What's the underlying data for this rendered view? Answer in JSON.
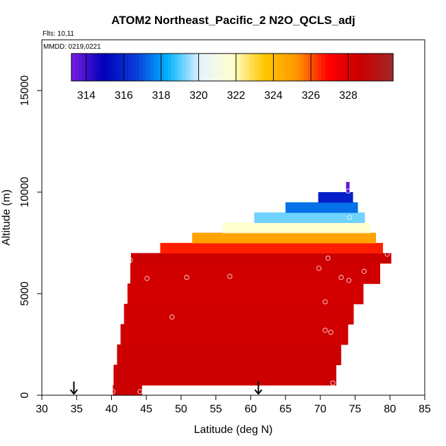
{
  "chart_data": {
    "type": "heatmap",
    "title": "ATOM2 Northeast_Pacific_2 N2O_QCLS_adj",
    "flights_label": "Flts: 10,11",
    "mmdd_label": "MMDD: 0219,0221",
    "xlabel": "Latitude (deg N)",
    "ylabel": "Altitude (m)",
    "xlim": [
      30,
      85
    ],
    "ylim": [
      0,
      17500
    ],
    "x_ticks": [
      30,
      35,
      40,
      45,
      50,
      55,
      60,
      65,
      70,
      75,
      80,
      85
    ],
    "y_ticks": [
      0,
      5000,
      10000,
      15000
    ],
    "grid": false,
    "colorbar": {
      "range": [
        313.2,
        330.4
      ],
      "ticks": [
        314,
        316,
        318,
        320,
        322,
        324,
        326,
        328
      ],
      "stops": [
        "#7a1fe0",
        "#0000b8",
        "#0a3cd8",
        "#00b4ff",
        "#e6f2ff",
        "#ffffd0",
        "#ffc800",
        "#ff9600",
        "#ff0000",
        "#c80000",
        "#a02828"
      ]
    },
    "layers": [
      {
        "z0": 0,
        "z1": 500,
        "lat0": 40.2,
        "lat1": 44.4,
        "value": 328.6
      },
      {
        "z0": 500,
        "z1": 1500,
        "lat0": 40.3,
        "lat1": 72.3,
        "value": 328.6
      },
      {
        "z0": 1500,
        "z1": 2500,
        "lat0": 40.8,
        "lat1": 73.0,
        "value": 328.6
      },
      {
        "z0": 2500,
        "z1": 3500,
        "lat0": 41.3,
        "lat1": 74.0,
        "value": 328.4
      },
      {
        "z0": 3500,
        "z1": 4500,
        "lat0": 41.8,
        "lat1": 74.8,
        "value": 328.4
      },
      {
        "z0": 4500,
        "z1": 5500,
        "lat0": 42.3,
        "lat1": 76.2,
        "value": 328.3
      },
      {
        "z0": 5500,
        "z1": 6500,
        "lat0": 42.7,
        "lat1": 78.6,
        "value": 328.4
      },
      {
        "z0": 6500,
        "z1": 7000,
        "lat0": 42.8,
        "lat1": 80.2,
        "value": 328.6
      },
      {
        "z0": 7000,
        "z1": 7500,
        "lat0": 47.0,
        "lat1": 79.0,
        "value": 326.6
      },
      {
        "z0": 7500,
        "z1": 8000,
        "lat0": 51.6,
        "lat1": 78.0,
        "value": 324.8
      },
      {
        "z0": 8000,
        "z1": 8500,
        "lat0": 56.0,
        "lat1": 77.2,
        "value": 321.8
      },
      {
        "z0": 8500,
        "z1": 9000,
        "lat0": 60.5,
        "lat1": 76.4,
        "value": 319.2
      },
      {
        "z0": 9000,
        "z1": 9500,
        "lat0": 65.0,
        "lat1": 75.4,
        "value": 317.4
      },
      {
        "z0": 9500,
        "z1": 10000,
        "lat0": 69.7,
        "lat1": 74.7,
        "value": 315.8
      },
      {
        "z0": 10000,
        "z1": 10500,
        "lat0": 73.7,
        "lat1": 74.2,
        "value": 313.6
      }
    ],
    "observations": [
      {
        "lat": 40.2,
        "alt": 180
      },
      {
        "lat": 44.1,
        "alt": 180
      },
      {
        "lat": 71.8,
        "alt": 600
      },
      {
        "lat": 42.7,
        "alt": 6650
      },
      {
        "lat": 45.1,
        "alt": 5750
      },
      {
        "lat": 50.8,
        "alt": 5800
      },
      {
        "lat": 57.0,
        "alt": 5850
      },
      {
        "lat": 48.7,
        "alt": 3850
      },
      {
        "lat": 69.8,
        "alt": 6250
      },
      {
        "lat": 71.1,
        "alt": 6750
      },
      {
        "lat": 73.0,
        "alt": 5800
      },
      {
        "lat": 74.1,
        "alt": 5650
      },
      {
        "lat": 76.3,
        "alt": 6100
      },
      {
        "lat": 70.7,
        "alt": 4600
      },
      {
        "lat": 70.7,
        "alt": 3200
      },
      {
        "lat": 71.5,
        "alt": 3100
      },
      {
        "lat": 79.6,
        "alt": 6950
      },
      {
        "lat": 74.2,
        "alt": 8750
      },
      {
        "lat": 74.0,
        "alt": 10050
      }
    ],
    "arrow_latitudes": [
      34.6,
      61.1
    ]
  }
}
